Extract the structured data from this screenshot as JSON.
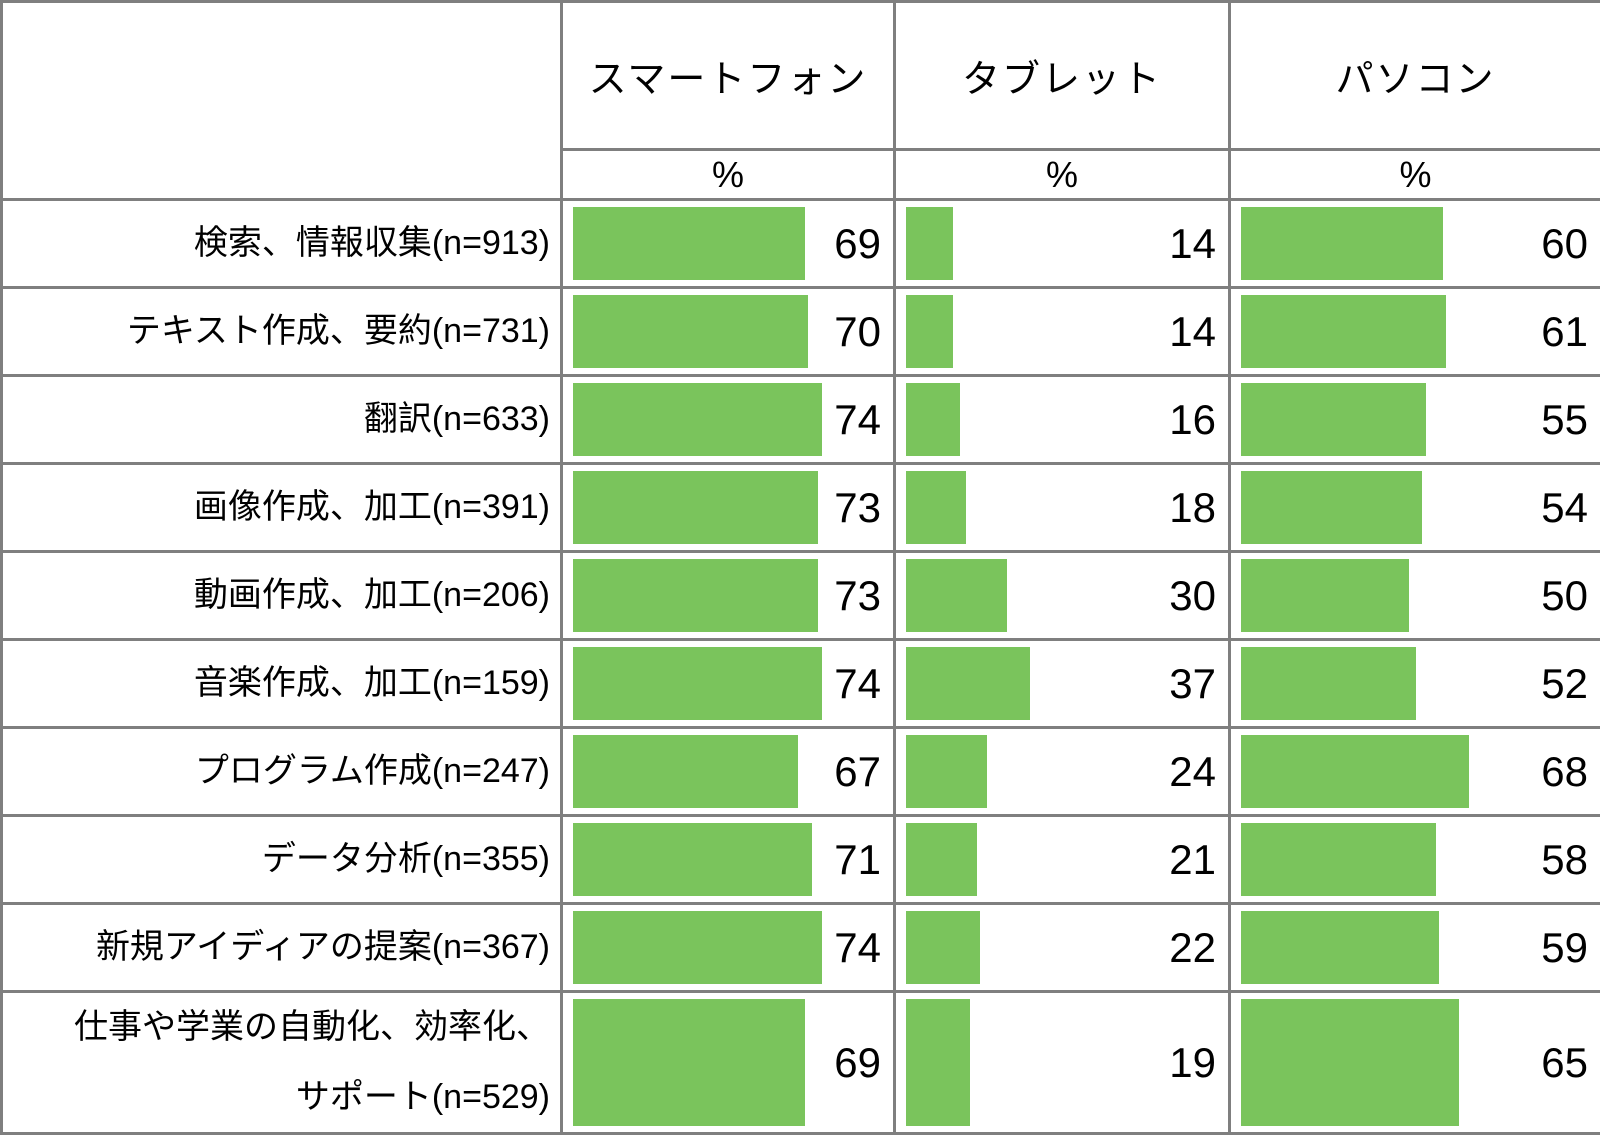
{
  "table": {
    "columns": [
      {
        "label": "スマートフォン",
        "unit": "%"
      },
      {
        "label": "タブレット",
        "unit": "%"
      },
      {
        "label": "パソコン",
        "unit": "%"
      }
    ],
    "rows": [
      {
        "label_lines": [
          "検索、情報収集(n=913)"
        ],
        "values": [
          69,
          14,
          60
        ]
      },
      {
        "label_lines": [
          "テキスト作成、要約(n=731)"
        ],
        "values": [
          70,
          14,
          61
        ]
      },
      {
        "label_lines": [
          "翻訳(n=633)"
        ],
        "values": [
          74,
          16,
          55
        ]
      },
      {
        "label_lines": [
          "画像作成、加工(n=391)"
        ],
        "values": [
          73,
          18,
          54
        ]
      },
      {
        "label_lines": [
          "動画作成、加工(n=206)"
        ],
        "values": [
          73,
          30,
          50
        ]
      },
      {
        "label_lines": [
          "音楽作成、加工(n=159)"
        ],
        "values": [
          74,
          37,
          52
        ]
      },
      {
        "label_lines": [
          "プログラム作成(n=247)"
        ],
        "values": [
          67,
          24,
          68
        ]
      },
      {
        "label_lines": [
          "データ分析(n=355)"
        ],
        "values": [
          71,
          21,
          58
        ]
      },
      {
        "label_lines": [
          "新規アイディアの提案(n=367)"
        ],
        "values": [
          74,
          22,
          59
        ]
      },
      {
        "label_lines": [
          "仕事や学業の自動化、効率化、",
          "サポート(n=529)"
        ],
        "values": [
          69,
          19,
          65
        ]
      }
    ]
  },
  "colors": {
    "bar_green": "#7ac45c",
    "border_gray": "#7f7f7f"
  },
  "chart_data": {
    "type": "bar",
    "categories": [
      "検索、情報収集(n=913)",
      "テキスト作成、要約(n=731)",
      "翻訳(n=633)",
      "画像作成、加工(n=391)",
      "動画作成、加工(n=206)",
      "音楽作成、加工(n=159)",
      "プログラム作成(n=247)",
      "データ分析(n=355)",
      "新規アイディアの提案(n=367)",
      "仕事や学業の自動化、効率化、サポート(n=529)"
    ],
    "series": [
      {
        "name": "スマートフォン",
        "values": [
          69,
          70,
          74,
          73,
          73,
          74,
          67,
          71,
          74,
          69
        ]
      },
      {
        "name": "タブレット",
        "values": [
          14,
          14,
          16,
          18,
          30,
          37,
          24,
          21,
          22,
          19
        ]
      },
      {
        "name": "パソコン",
        "values": [
          60,
          61,
          55,
          54,
          50,
          52,
          68,
          58,
          59,
          65
        ]
      }
    ],
    "unit": "%",
    "value_range": [
      0,
      100
    ],
    "orientation": "horizontal",
    "bar_color": "#7ac45c",
    "legend_position": "column-headers",
    "grid": false
  }
}
